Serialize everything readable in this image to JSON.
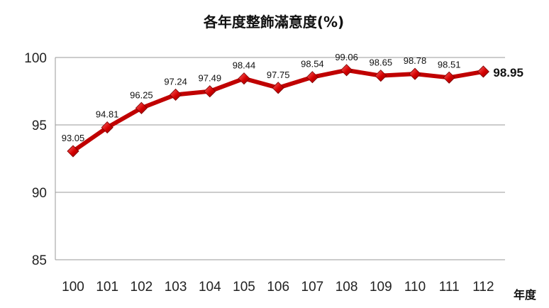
{
  "chart_data": {
    "type": "line",
    "title": "各年度整飾滿意度(%)",
    "xlabel": "年度",
    "ylabel": "",
    "categories": [
      "100",
      "101",
      "102",
      "103",
      "104",
      "105",
      "106",
      "107",
      "108",
      "109",
      "110",
      "111",
      "112"
    ],
    "series": [
      {
        "values": [
          93.05,
          94.81,
          96.25,
          97.24,
          97.49,
          98.44,
          97.75,
          98.54,
          99.06,
          98.65,
          98.78,
          98.51,
          98.95
        ],
        "color": "#c00000",
        "marker": "diamond"
      }
    ],
    "data_labels": [
      "93.05",
      "94.81",
      "96.25",
      "97.24",
      "97.49",
      "98.44",
      "97.75",
      "98.54",
      "99.06",
      "98.65",
      "98.78",
      "98.51",
      "98.95"
    ],
    "ylim": [
      85,
      100
    ],
    "yticks": [
      "85",
      "90",
      "95",
      "100"
    ],
    "grid": true,
    "legend": "none"
  }
}
